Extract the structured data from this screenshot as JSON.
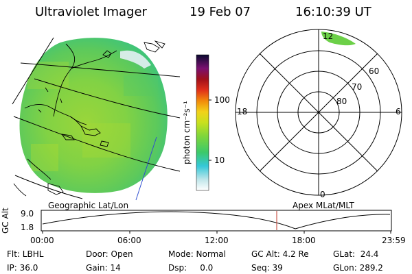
{
  "header": {
    "instrument": "Ultraviolet Imager",
    "date": "19 Feb 07",
    "time": "16:10:39 UT"
  },
  "colorbar": {
    "unit_label": "photon cm⁻²s⁻¹",
    "ticks": [
      "100",
      "10"
    ]
  },
  "polar_grid": {
    "mlt_labels": [
      "12",
      "18",
      "6",
      "0"
    ],
    "lat_labels": [
      "60",
      "70",
      "80"
    ]
  },
  "panel_labels": {
    "left": "Geographic Lat/Lon",
    "right": "Apex MLat/MLT"
  },
  "gc_alt_plot": {
    "ylabel": "GC Alt",
    "yticks": [
      "9.0",
      "1.8"
    ],
    "xticks": [
      "00:00",
      "06:00",
      "12:00",
      "18:00",
      "23:59"
    ],
    "current_time_marker": "16:10"
  },
  "status": {
    "row1": [
      "Flt: LBHL",
      "Door: Open",
      "Mode: Normal",
      "GC Alt: 4.2 Re",
      "GLat:  24.4"
    ],
    "row2": [
      "IP: 36.0",
      "Gain: 14",
      "Dsp:     0.0",
      "Seq: 39",
      "GLon: 289.2"
    ]
  },
  "colors": {
    "image_green": "#7cd43c",
    "marker_red": "#c0392b",
    "coast_line": "#000000",
    "track_blue": "#2f4fd0"
  }
}
